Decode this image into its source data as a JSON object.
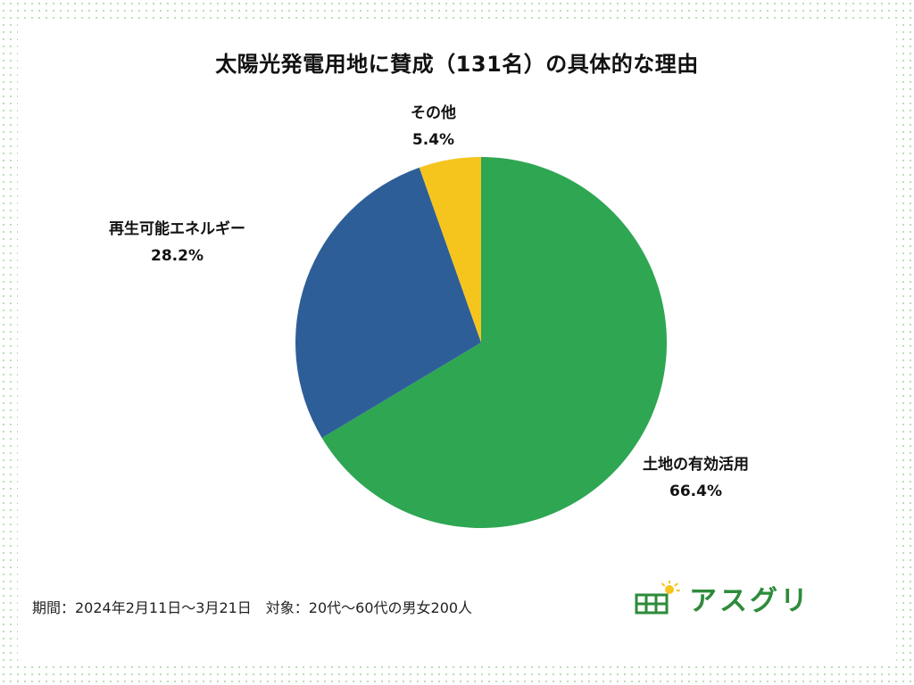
{
  "header": {
    "title": "太陽光発電用地に賛成（131名）の具体的な理由"
  },
  "chart_data": {
    "type": "pie",
    "title": "太陽光発電用地に賛成（131名）の具体的な理由",
    "slices": [
      {
        "label": "土地の有効活用",
        "value": 66.4,
        "value_label": "66.4%",
        "color": "#2ea652"
      },
      {
        "label": "再生可能エネルギー",
        "value": 28.2,
        "value_label": "28.2%",
        "color": "#2e5e98"
      },
      {
        "label": "その他",
        "value": 5.4,
        "value_label": "5.4%",
        "color": "#f5c51e"
      }
    ],
    "start": "12 o'clock, clockwise"
  },
  "footer": {
    "note": "期間：2024年2月11日～3月21日　対象：20代～60代の男女200人",
    "logo_text": "アスグリ"
  },
  "colors": {
    "background_dots": "#b9dcb5",
    "brand": "#2e8b3a",
    "sun": "#f5c51e"
  }
}
